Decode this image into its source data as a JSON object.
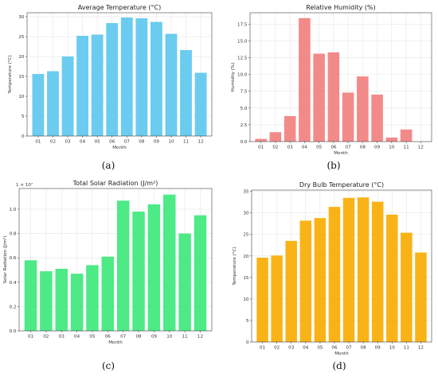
{
  "chart_data": [
    {
      "type": "bar",
      "title": "Average Temperature (°C)",
      "xlabel": "Month",
      "ylabel": "Temperature (°C)",
      "categories": [
        "01",
        "02",
        "03",
        "04",
        "05",
        "06",
        "07",
        "08",
        "09",
        "10",
        "11",
        "12"
      ],
      "values": [
        15.6,
        16.3,
        20.0,
        25.2,
        25.5,
        28.4,
        29.8,
        29.6,
        28.7,
        25.7,
        21.6,
        15.9
      ],
      "ylim": [
        0,
        31
      ],
      "yticks": [
        0,
        5,
        10,
        15,
        20,
        25,
        30
      ],
      "ytick_labels": [
        "0",
        "5",
        "10",
        "15",
        "20",
        "25",
        "30"
      ],
      "color": "#5ec8ef",
      "grid": true,
      "caption": "(a)"
    },
    {
      "type": "bar",
      "title": "Relative Humidity (%)",
      "xlabel": "Month",
      "ylabel": "Humidity (%)",
      "categories": [
        "01",
        "02",
        "03",
        "04",
        "05",
        "06",
        "07",
        "08",
        "09",
        "10",
        "11",
        "12"
      ],
      "values": [
        0.4,
        1.4,
        3.8,
        18.4,
        13.1,
        13.3,
        7.3,
        9.7,
        7.0,
        0.6,
        1.8,
        0.0
      ],
      "ylim": [
        0,
        19.2
      ],
      "yticks": [
        0,
        2.5,
        5.0,
        7.5,
        10.0,
        12.5,
        15.0,
        17.5
      ],
      "ytick_labels": [
        "0.0",
        "2.5",
        "5.0",
        "7.5",
        "10.0",
        "12.5",
        "15.0",
        "17.5"
      ],
      "color": "#f28080",
      "grid": true,
      "caption": "(b)"
    },
    {
      "type": "bar",
      "title": "Total Solar Radiation (J/m²)",
      "xlabel": "Month",
      "ylabel": "Solar Radiation (J/m²)",
      "offset_label": "1 × 10⁷",
      "categories": [
        "01",
        "02",
        "03",
        "04",
        "05",
        "06",
        "07",
        "08",
        "09",
        "10",
        "11",
        "12"
      ],
      "values": [
        0.58,
        0.49,
        0.51,
        0.47,
        0.54,
        0.61,
        1.07,
        0.98,
        1.04,
        1.12,
        0.8,
        0.95
      ],
      "ylim": [
        0,
        1.17
      ],
      "yticks": [
        0,
        0.2,
        0.4,
        0.6,
        0.8,
        1.0
      ],
      "ytick_labels": [
        "0.0",
        "0.2",
        "0.4",
        "0.6",
        "0.8",
        "1.0"
      ],
      "color": "#3ee87c",
      "grid": true,
      "caption": "(c)"
    },
    {
      "type": "bar",
      "title": "Dry Bulb Temperature (°C)",
      "xlabel": "Month",
      "ylabel": "Temperature (°C)",
      "categories": [
        "01",
        "02",
        "03",
        "04",
        "05",
        "06",
        "07",
        "08",
        "09",
        "10",
        "11",
        "12"
      ],
      "values": [
        19.6,
        20.1,
        23.5,
        28.2,
        28.8,
        31.4,
        33.5,
        33.6,
        32.6,
        29.6,
        25.4,
        20.8
      ],
      "ylim": [
        0,
        35.3
      ],
      "yticks": [
        0,
        5,
        10,
        15,
        20,
        25,
        30,
        35
      ],
      "ytick_labels": [
        "0",
        "5",
        "10",
        "15",
        "20",
        "25",
        "30",
        "35"
      ],
      "color": "#f8ad02",
      "grid": true,
      "caption": "(d)"
    }
  ]
}
